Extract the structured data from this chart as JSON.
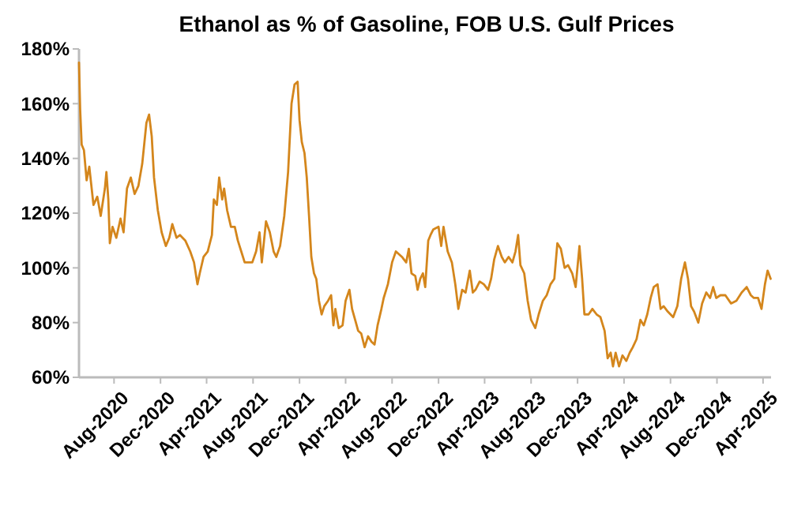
{
  "chart_data": {
    "type": "line",
    "title": "Ethanol as % of Gasoline, FOB U.S. Gulf Prices",
    "x": [
      "2020-05-01",
      "2020-05-04",
      "2020-05-08",
      "2020-05-14",
      "2020-05-21",
      "2020-05-28",
      "2020-06-08",
      "2020-06-18",
      "2020-06-27",
      "2020-07-08",
      "2020-07-12",
      "2020-07-17",
      "2020-07-21",
      "2020-07-28",
      "2020-08-07",
      "2020-08-18",
      "2020-08-26",
      "2020-09-04",
      "2020-09-14",
      "2020-09-24",
      "2020-10-04",
      "2020-10-14",
      "2020-10-25",
      "2020-11-01",
      "2020-11-08",
      "2020-11-14",
      "2020-11-24",
      "2020-12-04",
      "2020-12-15",
      "2020-12-24",
      "2021-01-01",
      "2021-01-12",
      "2021-01-21",
      "2021-02-04",
      "2021-02-17",
      "2021-02-27",
      "2021-03-08",
      "2021-03-14",
      "2021-03-24",
      "2021-04-04",
      "2021-04-15",
      "2021-04-20",
      "2021-04-28",
      "2021-05-04",
      "2021-05-12",
      "2021-05-17",
      "2021-05-25",
      "2021-06-04",
      "2021-06-14",
      "2021-06-22",
      "2021-07-01",
      "2021-07-10",
      "2021-07-21",
      "2021-07-30",
      "2021-08-09",
      "2021-08-18",
      "2021-08-24",
      "2021-09-04",
      "2021-09-14",
      "2021-09-24",
      "2021-10-01",
      "2021-10-11",
      "2021-10-22",
      "2021-11-01",
      "2021-11-10",
      "2021-11-18",
      "2021-11-26",
      "2021-12-01",
      "2021-12-07",
      "2021-12-14",
      "2021-12-20",
      "2021-12-26",
      "2022-01-01",
      "2022-01-08",
      "2022-01-14",
      "2022-01-21",
      "2022-01-28",
      "2022-02-04",
      "2022-02-14",
      "2022-02-22",
      "2022-02-28",
      "2022-03-05",
      "2022-03-14",
      "2022-03-24",
      "2022-04-01",
      "2022-04-11",
      "2022-04-18",
      "2022-04-26",
      "2022-05-04",
      "2022-05-12",
      "2022-05-21",
      "2022-05-30",
      "2022-06-08",
      "2022-06-16",
      "2022-06-24",
      "2022-07-04",
      "2022-07-10",
      "2022-07-21",
      "2022-08-01",
      "2022-08-11",
      "2022-08-27",
      "2022-09-07",
      "2022-09-14",
      "2022-09-21",
      "2022-10-01",
      "2022-10-07",
      "2022-10-14",
      "2022-10-21",
      "2022-10-27",
      "2022-11-04",
      "2022-11-10",
      "2022-11-17",
      "2022-12-01",
      "2022-12-08",
      "2022-12-14",
      "2022-12-25",
      "2023-01-05",
      "2023-01-14",
      "2023-01-22",
      "2023-02-01",
      "2023-02-10",
      "2023-02-21",
      "2023-03-01",
      "2023-03-08",
      "2023-03-19",
      "2023-03-30",
      "2023-04-10",
      "2023-04-18",
      "2023-04-26",
      "2023-05-06",
      "2023-05-16",
      "2023-05-24",
      "2023-06-03",
      "2023-06-13",
      "2023-06-21",
      "2023-06-28",
      "2023-07-04",
      "2023-07-14",
      "2023-07-23",
      "2023-08-01",
      "2023-08-12",
      "2023-08-21",
      "2023-09-01",
      "2023-09-11",
      "2023-09-21",
      "2023-10-01",
      "2023-10-09",
      "2023-10-18",
      "2023-10-28",
      "2023-11-06",
      "2023-11-17",
      "2023-11-26",
      "2023-12-06",
      "2023-12-13",
      "2023-12-19",
      "2023-12-30",
      "2024-01-09",
      "2024-01-20",
      "2024-01-30",
      "2024-02-10",
      "2024-02-18",
      "2024-02-26",
      "2024-03-03",
      "2024-03-10",
      "2024-03-19",
      "2024-03-28",
      "2024-04-07",
      "2024-04-16",
      "2024-04-24",
      "2024-05-04",
      "2024-05-14",
      "2024-05-23",
      "2024-06-01",
      "2024-06-10",
      "2024-06-18",
      "2024-06-28",
      "2024-07-06",
      "2024-07-14",
      "2024-07-25",
      "2024-08-08",
      "2024-08-19",
      "2024-08-29",
      "2024-09-08",
      "2024-09-16",
      "2024-09-24",
      "2024-10-02",
      "2024-10-13",
      "2024-10-23",
      "2024-11-03",
      "2024-11-13",
      "2024-11-21",
      "2024-11-29",
      "2024-12-10",
      "2024-12-23",
      "2025-01-07",
      "2025-01-21",
      "2025-02-04",
      "2025-02-17",
      "2025-02-28",
      "2025-03-08",
      "2025-03-19",
      "2025-03-28",
      "2025-04-06",
      "2025-04-13",
      "2025-04-21"
    ],
    "series": [
      {
        "color": "#d4861c",
        "values": [
          175,
          158,
          145,
          143,
          132,
          137,
          123,
          126,
          119,
          129,
          135,
          125,
          109,
          115,
          111,
          118,
          113,
          129,
          133,
          127,
          130,
          138,
          153,
          156,
          148,
          133,
          121,
          113,
          108,
          111,
          116,
          111,
          112,
          110,
          106,
          102,
          94,
          98,
          104,
          106,
          112,
          125,
          123,
          133,
          125,
          129,
          121,
          115,
          115,
          110,
          106,
          102,
          102,
          102,
          106,
          113,
          102,
          117,
          113,
          106,
          104,
          108,
          119,
          135,
          160,
          167,
          168,
          154,
          146,
          142,
          133,
          119,
          104,
          98,
          96,
          88,
          83,
          86,
          88,
          90,
          79,
          85,
          78,
          79,
          88,
          92,
          85,
          81,
          77,
          76,
          71,
          75,
          73,
          72,
          79,
          85,
          89,
          94,
          102,
          106,
          104,
          102,
          107,
          98,
          97,
          92,
          96,
          98,
          93,
          110,
          112,
          114,
          115,
          108,
          115,
          106,
          102,
          94,
          85,
          92,
          91,
          99,
          91,
          92,
          95,
          94,
          92,
          96,
          103,
          108,
          104,
          102,
          104,
          102,
          106,
          112,
          101,
          98,
          88,
          81,
          78,
          83,
          88,
          90,
          94,
          96,
          109,
          107,
          100,
          101,
          98,
          93,
          108,
          96,
          83,
          83,
          85,
          83,
          82,
          77,
          67,
          69,
          64,
          69,
          64,
          68,
          66,
          69,
          71,
          74,
          81,
          79,
          83,
          89,
          93,
          94,
          85,
          86,
          84,
          82,
          86,
          96,
          102,
          96,
          86,
          84,
          80,
          87,
          91,
          89,
          93,
          89,
          90,
          90,
          87,
          88,
          91,
          93,
          90,
          89,
          89,
          85,
          94,
          99,
          96
        ]
      }
    ],
    "xlim": [
      "2020-05-01",
      "2025-04-22"
    ],
    "xticks": [
      {
        "value": "2020-08-01",
        "label": "Aug-2020"
      },
      {
        "value": "2020-12-01",
        "label": "Dec-2020"
      },
      {
        "value": "2021-04-01",
        "label": "Apr-2021"
      },
      {
        "value": "2021-08-01",
        "label": "Aug-2021"
      },
      {
        "value": "2021-12-01",
        "label": "Dec-2021"
      },
      {
        "value": "2022-04-01",
        "label": "Apr-2022"
      },
      {
        "value": "2022-08-01",
        "label": "Aug-2022"
      },
      {
        "value": "2022-12-01",
        "label": "Dec-2022"
      },
      {
        "value": "2023-04-01",
        "label": "Apr-2023"
      },
      {
        "value": "2023-08-01",
        "label": "Aug-2023"
      },
      {
        "value": "2023-12-01",
        "label": "Dec-2023"
      },
      {
        "value": "2024-04-01",
        "label": "Apr-2024"
      },
      {
        "value": "2024-08-01",
        "label": "Aug-2024"
      },
      {
        "value": "2024-12-01",
        "label": "Dec-2024"
      },
      {
        "value": "2025-04-01",
        "label": "Apr-2025"
      }
    ],
    "ylim": [
      60,
      180
    ],
    "yticks": [
      {
        "value": 60,
        "label": "60%"
      },
      {
        "value": 80,
        "label": "80%"
      },
      {
        "value": 100,
        "label": "100%"
      },
      {
        "value": 120,
        "label": "120%"
      },
      {
        "value": 140,
        "label": "140%"
      },
      {
        "value": 160,
        "label": "160%"
      },
      {
        "value": 180,
        "label": "180%"
      }
    ],
    "grid": false,
    "marker": "none",
    "line_style": "solid"
  }
}
